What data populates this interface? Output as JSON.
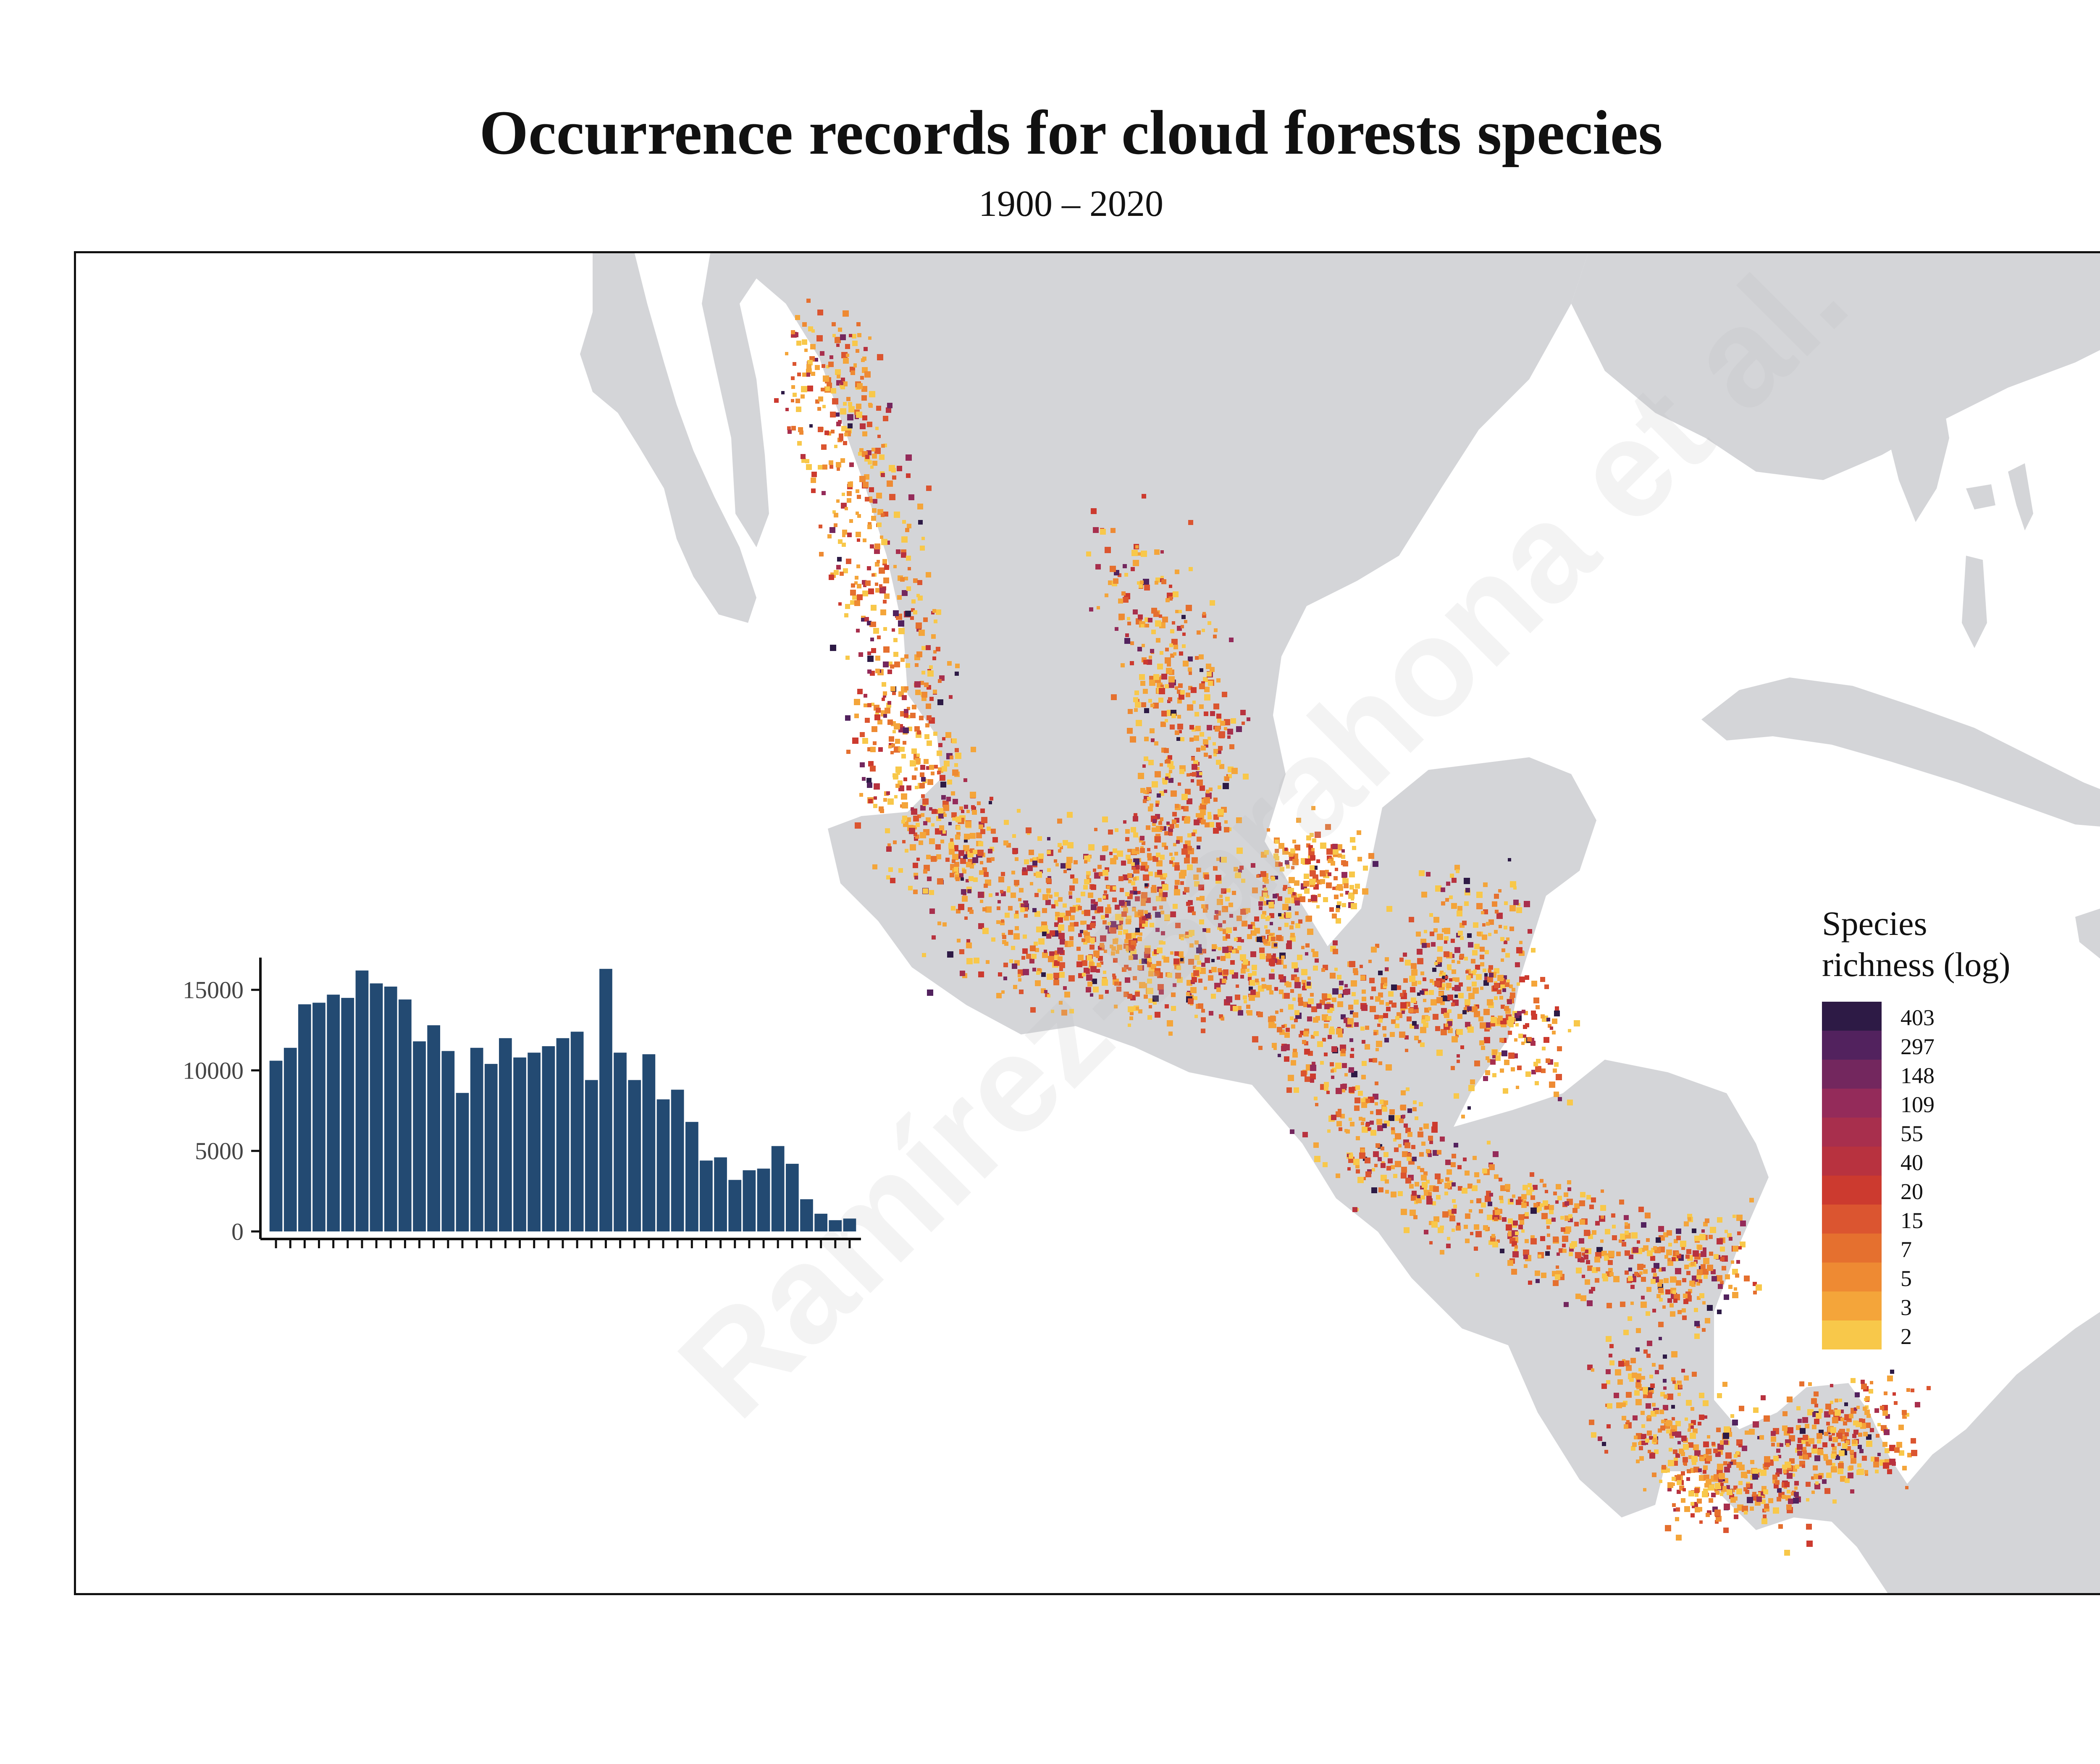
{
  "title": "Occurrence records for cloud forests species",
  "subtitle": "1900 – 2020",
  "watermark": "Ramírez-Barahona et al.",
  "legend": {
    "title_line1": "Species",
    "title_line2": "richness (log)",
    "labels": [
      "403",
      "297",
      "148",
      "109",
      "55",
      "40",
      "20",
      "15",
      "7",
      "5",
      "3",
      "2"
    ],
    "colors": [
      "#2d1a45",
      "#52225e",
      "#73275e",
      "#942b5a",
      "#a82f4d",
      "#b8323f",
      "#cc3a2f",
      "#db5530",
      "#e5702f",
      "#ee8a33",
      "#f4a53a",
      "#f8c84a"
    ]
  },
  "colors": {
    "land": "#d4d5d8",
    "ocean": "#ffffff",
    "bar": "#234a72",
    "frame": "#111111"
  },
  "chart_data": {
    "type": "bar",
    "title": "",
    "xlabel": "",
    "ylabel": "",
    "ylim": [
      0,
      17000
    ],
    "y_ticks": [
      0,
      5000,
      10000,
      15000
    ],
    "x_tick_labels_visible": "overlapping, illegible",
    "values": [
      10600,
      11400,
      14100,
      14200,
      14700,
      14500,
      16200,
      15400,
      15200,
      14400,
      11800,
      12800,
      11200,
      8600,
      11400,
      10400,
      12000,
      10800,
      11100,
      11500,
      12000,
      12400,
      9400,
      16300,
      11100,
      9400,
      11000,
      8200,
      8800,
      6800,
      4400,
      4600,
      3200,
      3800,
      3900,
      5300,
      4200,
      2000,
      1100,
      700,
      800
    ]
  }
}
